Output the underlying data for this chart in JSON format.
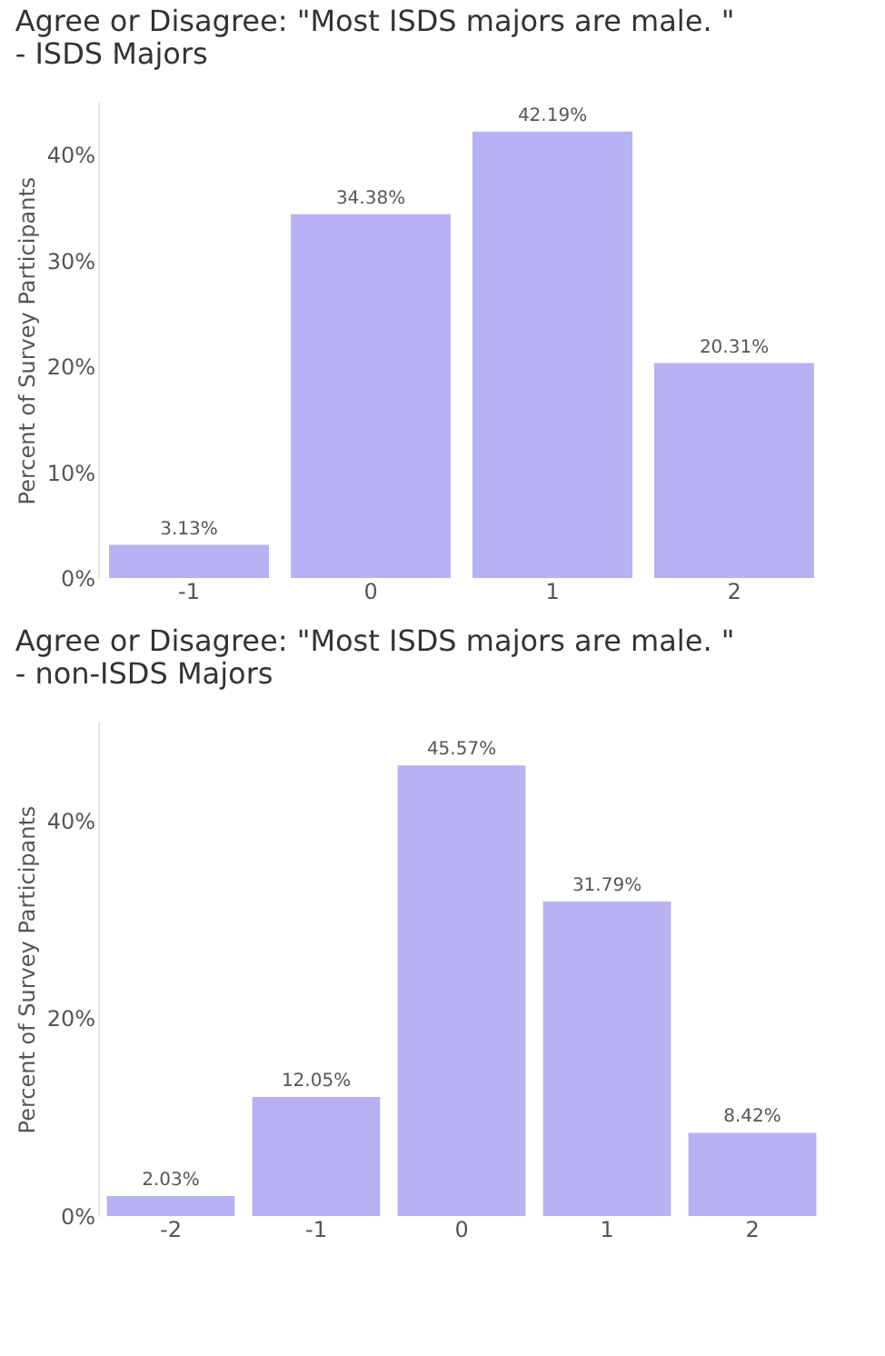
{
  "chart_data": [
    {
      "type": "bar",
      "title": "Agree or Disagree: \"Most ISDS majors are male. \" - ISDS Majors",
      "ylabel": "Percent of Survey Participants",
      "categories": [
        "-1",
        "0",
        "1",
        "2"
      ],
      "values": [
        3.13,
        34.38,
        42.19,
        20.31
      ],
      "color": "#b6b2f3",
      "value_labels": [
        "3.13%",
        "34.38%",
        "42.19%",
        "20.31%"
      ],
      "ylim": [
        0,
        45
      ],
      "yticks": [
        {
          "value": 0,
          "label": "0%"
        },
        {
          "value": 10,
          "label": "10%"
        },
        {
          "value": 20,
          "label": "20%"
        },
        {
          "value": 30,
          "label": "30%"
        },
        {
          "value": 40,
          "label": "40%"
        }
      ],
      "grid": false
    },
    {
      "type": "bar",
      "title": "Agree or Disagree: \"Most ISDS majors are male. \" - non-ISDS Majors",
      "ylabel": "Percent of Survey Participants",
      "categories": [
        "-2",
        "-1",
        "0",
        "1",
        "2"
      ],
      "values": [
        2.03,
        12.05,
        45.57,
        31.79,
        8.42
      ],
      "color": "#b6b2f3",
      "value_labels": [
        "2.03%",
        "12.05%",
        "45.57%",
        "31.79%",
        "8.42%"
      ],
      "ylim": [
        0,
        50
      ],
      "yticks": [
        {
          "value": 0,
          "label": "0%"
        },
        {
          "value": 20,
          "label": "20%"
        },
        {
          "value": 40,
          "label": "40%"
        }
      ],
      "grid": false
    }
  ]
}
